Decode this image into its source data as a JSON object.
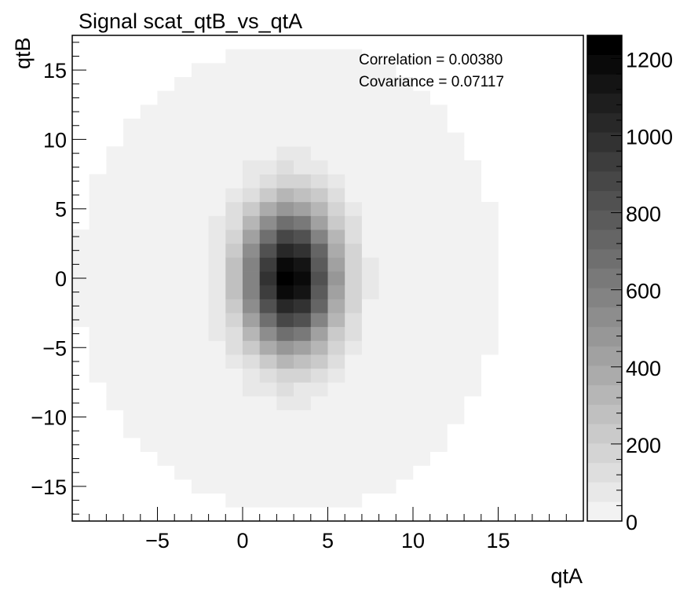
{
  "chart_data": {
    "type": "heatmap",
    "title": "Signal scat_qtB_vs_qtA",
    "xlabel": "qtA",
    "ylabel": "qtB",
    "xlim": [
      -10,
      20
    ],
    "ylim": [
      -17.5,
      17.5
    ],
    "x_ticks": [
      -5,
      0,
      5,
      10,
      15
    ],
    "y_ticks": [
      -15,
      -10,
      -5,
      0,
      5,
      10,
      15
    ],
    "x_tick_labels": [
      "−5",
      "0",
      "5",
      "10",
      "15"
    ],
    "y_tick_labels": [
      "−15",
      "−10",
      "−5",
      "0",
      "5",
      "10",
      "15"
    ],
    "colorbar": {
      "min": 0,
      "max": 1260,
      "ticks": [
        0,
        200,
        400,
        600,
        800,
        1000,
        1200
      ],
      "tick_labels": [
        "0",
        "200",
        "400",
        "600",
        "800",
        "1000",
        "1200"
      ],
      "levels": 25,
      "palette": "grayscale (white = low, black = high)"
    },
    "stats": {
      "correlation": "Correlation = 0.00380",
      "covariance": "Covariance = 0.07117"
    },
    "bins": {
      "x_edges_start": -10,
      "x_bin_width": 1,
      "n_x": 30,
      "y_edges_start": -17.5,
      "y_bin_width": 1,
      "n_y": 35
    },
    "distribution": {
      "description_values_only": true,
      "peak_count": 1250,
      "center_x": 2.8,
      "center_y": 0.0,
      "sigma_x": 1.9,
      "sigma_y": 3.6,
      "floor_count": 25,
      "outer_radius_x": 12.5,
      "outer_radius_y": 17.0
    }
  }
}
